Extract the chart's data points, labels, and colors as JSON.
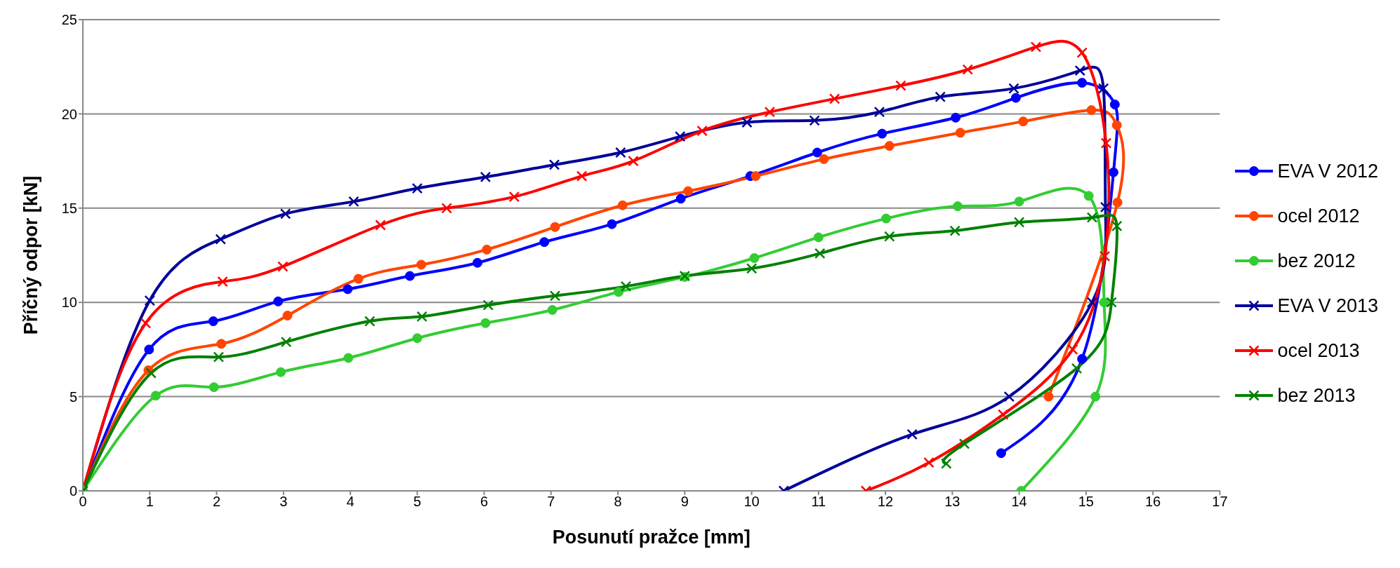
{
  "chart_data": {
    "type": "line",
    "xlabel": "Posunutí pražce [mm]",
    "ylabel": "Příčný odpor [kN]",
    "xlim": [
      0,
      17
    ],
    "xticks": [
      0,
      1,
      2,
      3,
      4,
      5,
      6,
      7,
      8,
      9,
      10,
      11,
      12,
      13,
      14,
      15,
      16,
      17
    ],
    "ylim": [
      0,
      25
    ],
    "yticks": [
      0,
      5,
      10,
      15,
      20,
      25
    ],
    "grid": "y",
    "legend": "right",
    "line_style": "solid",
    "series": [
      {
        "name": "EVA V 2012",
        "color": "#0000ff",
        "marker": "circle",
        "x": [
          0,
          0.99,
          1.95,
          2.92,
          3.96,
          4.89,
          5.9,
          6.9,
          7.91,
          8.94,
          9.98,
          10.98,
          11.95,
          13.05,
          13.95,
          14.94,
          15.43,
          15.41,
          14.94,
          13.73
        ],
        "values": [
          0,
          7.5,
          9,
          10.05,
          10.7,
          11.4,
          12.1,
          13.2,
          14.15,
          15.5,
          16.7,
          17.95,
          18.95,
          19.8,
          20.85,
          21.65,
          20.5,
          16.9,
          7,
          2
        ]
      },
      {
        "name": "ocel 2012",
        "color": "#ff4500",
        "marker": "circle",
        "x": [
          0,
          0.98,
          2.07,
          3.06,
          4.12,
          5.06,
          6.04,
          7.06,
          8.07,
          9.05,
          10.06,
          11.08,
          12.06,
          13.12,
          14.06,
          15.08,
          15.46,
          15.47,
          14.44
        ],
        "values": [
          0,
          6.4,
          7.8,
          9.3,
          11.25,
          12,
          12.8,
          14,
          15.15,
          15.9,
          16.7,
          17.6,
          18.3,
          19,
          19.6,
          20.2,
          19.4,
          15.3,
          5
        ]
      },
      {
        "name": "bez 2012",
        "color": "#33cc33",
        "marker": "circle",
        "x": [
          0,
          1.09,
          1.96,
          2.96,
          3.97,
          5,
          6.02,
          7.02,
          8.01,
          9,
          10.04,
          11,
          12.01,
          13.08,
          14,
          15.04,
          15.27,
          15.14,
          14.03
        ],
        "values": [
          0,
          5.05,
          5.5,
          6.3,
          7.05,
          8.1,
          8.9,
          9.6,
          10.55,
          11.35,
          12.35,
          13.45,
          14.45,
          15.1,
          15.35,
          15.65,
          10,
          5,
          0
        ]
      },
      {
        "name": "EVA V 2013",
        "color": "#000099",
        "marker": "cross",
        "x": [
          0,
          1,
          2.06,
          3.03,
          4.05,
          5,
          6.02,
          7.05,
          8.04,
          8.93,
          9.93,
          10.94,
          11.91,
          12.82,
          13.92,
          14.91,
          15.26,
          15.29,
          15.09,
          13.85,
          12.4,
          10.48
        ],
        "values": [
          0,
          10.1,
          13.35,
          14.7,
          15.35,
          16.05,
          16.65,
          17.3,
          17.95,
          18.8,
          19.55,
          19.65,
          20.1,
          20.9,
          21.35,
          22.3,
          21.35,
          15.05,
          10,
          5,
          3,
          0
        ]
      },
      {
        "name": "ocel 2013",
        "color": "#ff0000",
        "marker": "cross",
        "x": [
          0,
          0.94,
          2.09,
          2.99,
          4.45,
          5.44,
          6.45,
          7.46,
          8.23,
          9.26,
          10.27,
          11.24,
          12.23,
          13.23,
          14.25,
          14.94,
          15.3,
          15.28,
          14.8,
          13.76,
          12.65,
          11.71
        ],
        "values": [
          0,
          8.9,
          11.1,
          11.9,
          14.1,
          15,
          15.6,
          16.7,
          17.5,
          19.1,
          20.1,
          20.8,
          21.5,
          22.35,
          23.55,
          23.25,
          18.45,
          12.45,
          7.5,
          4.05,
          1.5,
          0
        ]
      },
      {
        "name": "bez 2013",
        "color": "#008000",
        "marker": "cross",
        "x": [
          0,
          1.02,
          2.03,
          3.04,
          4.29,
          5.07,
          6.06,
          7.06,
          8.12,
          9,
          10,
          11.02,
          12.06,
          13.04,
          14,
          15.09,
          15.46,
          15.38,
          14.86,
          13.18,
          12.91
        ],
        "values": [
          0,
          6.25,
          7.1,
          7.9,
          9,
          9.25,
          9.85,
          10.35,
          10.85,
          11.4,
          11.8,
          12.6,
          13.5,
          13.8,
          14.25,
          14.5,
          14.05,
          10,
          6.5,
          2.5,
          1.45
        ]
      }
    ]
  }
}
